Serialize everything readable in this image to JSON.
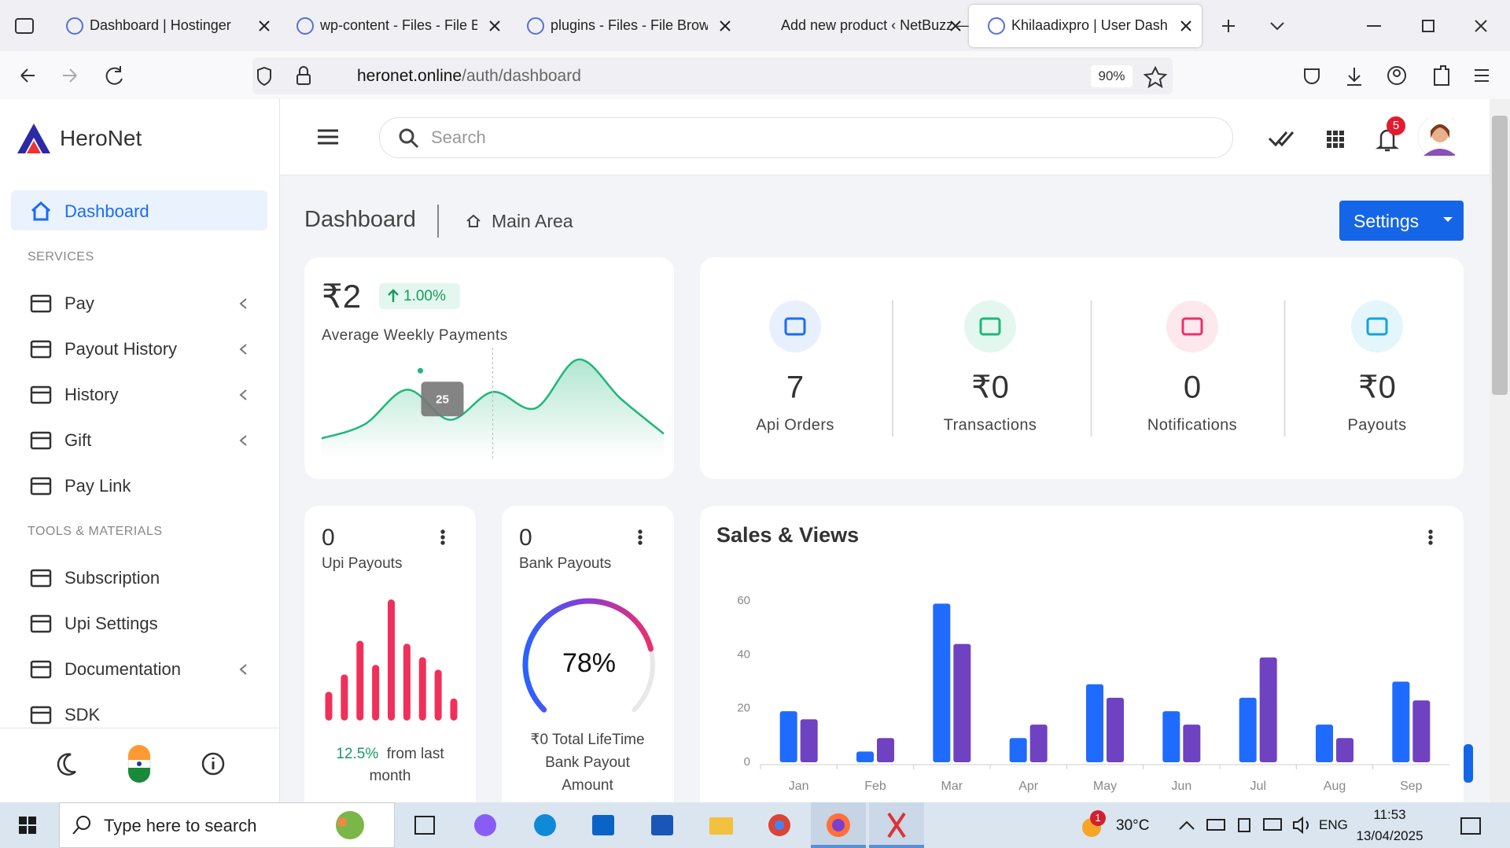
{
  "browser": {
    "tabs": [
      "Dashboard | Hostinger",
      "wp-content - Files - File Br",
      "plugins - Files - File Brows",
      "Add new product ‹ NetBuzz —",
      "Khilaadixpro | User Dashb"
    ],
    "active_tab": 4,
    "url_host": "heronet.online",
    "url_path": "/auth/dashboard",
    "zoom": "90%"
  },
  "sidebar": {
    "brand": "HeroNet",
    "active_item": "Dashboard",
    "sections": [
      {
        "title": "SERVICES",
        "items": [
          {
            "label": "Pay",
            "submenu": true
          },
          {
            "label": "Payout History",
            "submenu": true
          },
          {
            "label": "History",
            "submenu": true
          },
          {
            "label": "Gift",
            "submenu": true
          },
          {
            "label": "Pay Link",
            "submenu": false
          }
        ]
      },
      {
        "title": "TOOLS & MATERIALS",
        "items": [
          {
            "label": "Subscription",
            "submenu": false
          },
          {
            "label": "Upi Settings",
            "submenu": false
          },
          {
            "label": "Documentation",
            "submenu": true
          },
          {
            "label": "SDK",
            "submenu": false
          }
        ]
      }
    ]
  },
  "topbar": {
    "search_placeholder": "Search",
    "notification_count": 5
  },
  "page_header": {
    "title": "Dashboard",
    "breadcrumb": "Main Area",
    "settings_button": "Settings"
  },
  "weekly_card": {
    "amount": "₹2",
    "change": "1.00%",
    "label": "Average Weekly Payments",
    "chart_data": {
      "type": "area",
      "values": [
        5,
        11,
        26,
        13,
        25,
        18,
        39,
        22,
        7
      ],
      "color": "#20b67a"
    }
  },
  "stats": [
    {
      "value": "7",
      "label": "Api Orders",
      "color": "#1a6cf5",
      "background": "#e8f0fe"
    },
    {
      "value": "₹0",
      "label": "Transactions",
      "color": "#20b67a",
      "background": "#e3f7ee"
    },
    {
      "value": "0",
      "label": "Notifications",
      "color": "#ec2f6b",
      "background": "#fde8ee"
    },
    {
      "value": "₹0",
      "label": "Payouts",
      "color": "#17a2d8",
      "background": "#e2f6fb"
    }
  ],
  "upi_card": {
    "value": "0",
    "label": "Upi Payouts",
    "change": "12.5%",
    "change_text": "from last month",
    "chart_data": {
      "type": "bar",
      "values": [
        30,
        48,
        83,
        58,
        126,
        80,
        66,
        53,
        23
      ],
      "color": "#f0305a"
    }
  },
  "bank_card": {
    "value": "0",
    "label": "Bank Payouts",
    "footer": "₹0 Total LifeTime Bank Payout Amount",
    "chart_data": {
      "type": "gauge",
      "value": 78,
      "value_label": "78%"
    }
  },
  "sales_card": {
    "title": "Sales & Views",
    "chart_data": {
      "type": "bar",
      "categories": [
        "Jan",
        "Feb",
        "Mar",
        "Apr",
        "May",
        "Jun",
        "Jul",
        "Aug",
        "Sep"
      ],
      "series": [
        {
          "color": "#1f6bff",
          "values": [
            19,
            4,
            59,
            9,
            29,
            19,
            24,
            14,
            30
          ]
        },
        {
          "color": "#6f42c1",
          "values": [
            16,
            9,
            44,
            14,
            24,
            14,
            39,
            9,
            23
          ]
        }
      ],
      "ylim": [
        0,
        60
      ],
      "yticks": [
        0,
        20,
        40,
        60
      ],
      "grid": false
    }
  },
  "taskbar": {
    "search_placeholder": "Type here to search",
    "weather_badge": 1,
    "temperature": "30°C",
    "language": "ENG",
    "time": "11:53",
    "date": "13/04/2025"
  }
}
